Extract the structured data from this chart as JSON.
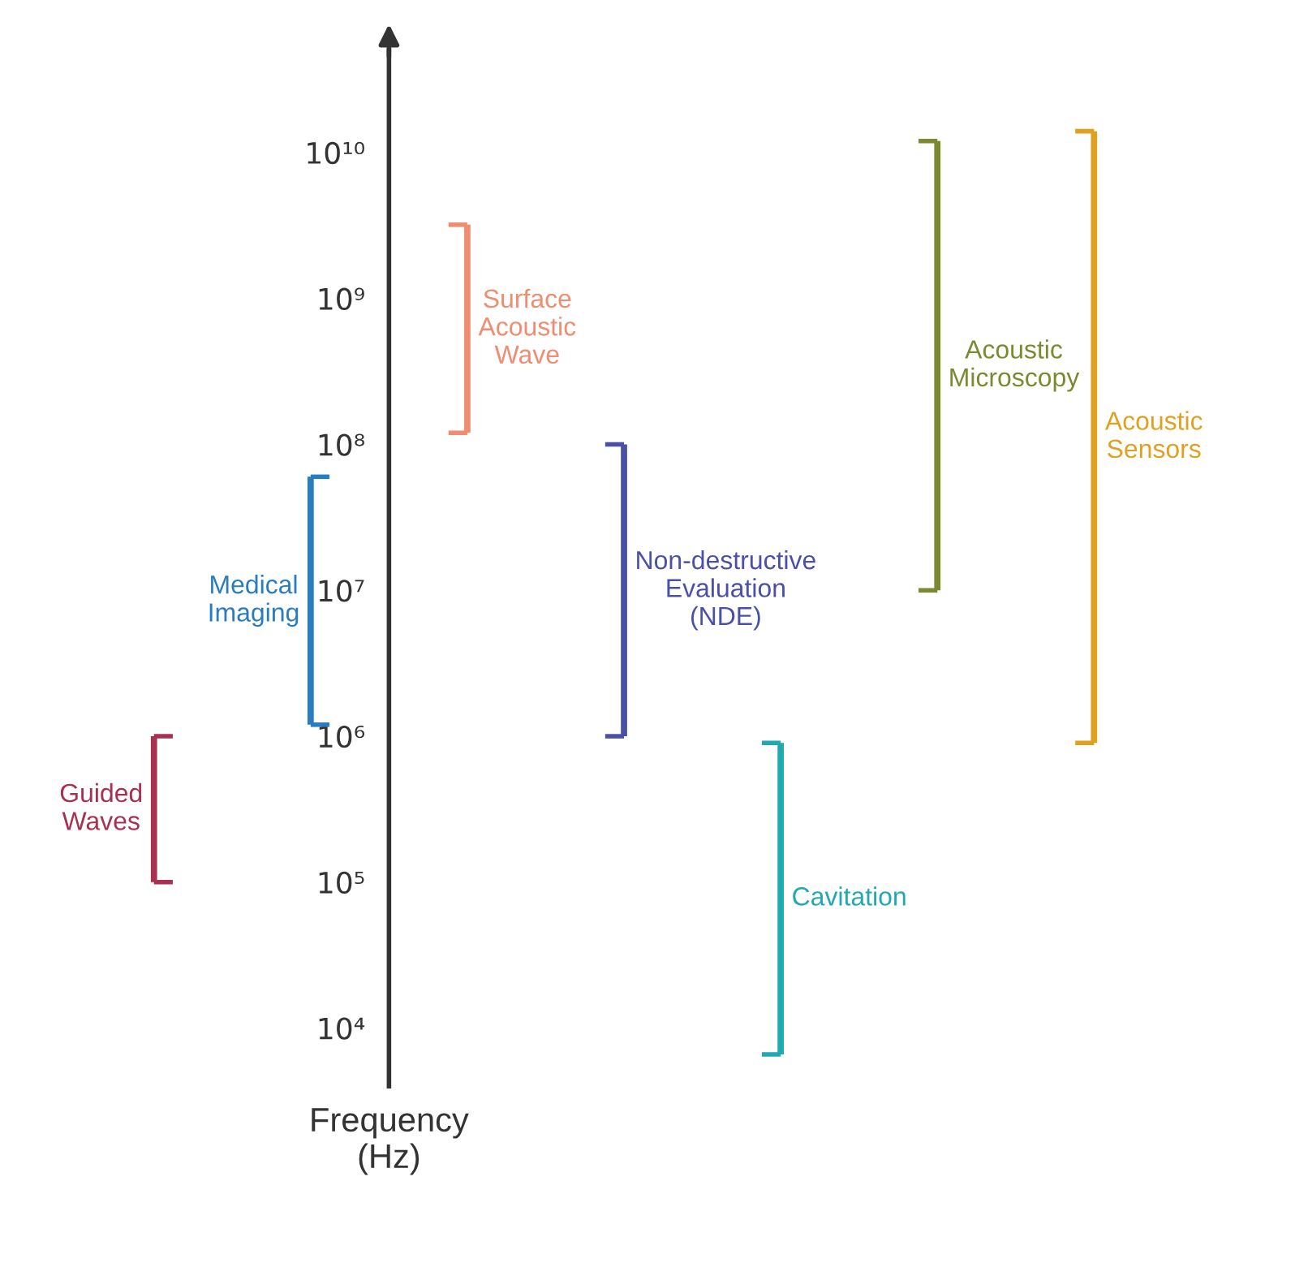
{
  "chart_data": {
    "type": "bar",
    "xlabel": "Frequency\n(Hz)",
    "categories": [
      null,
      null,
      null,
      null,
      null,
      null,
      null
    ],
    "base": [
      100000,
      1200000,
      120000000,
      1000000,
      6600,
      10000000,
      900000
    ],
    "values": [
      900000,
      58800000,
      3080000000,
      99000000,
      893400,
      11990000000,
      13999100000
    ],
    "colors": [
      "#a83050",
      "#2a7cc0",
      "#f08c70",
      "#4a50a8",
      "#22a8b0",
      "#7a8a30",
      "#e0a020"
    ],
    "annotations": [
      "Guided\nWaves",
      "Medical\nImaging",
      "Surface\nAcoustic\nWave",
      "Non-destructive\nEvaluation\n(NDE)",
      "Cavitation",
      "Acoustic\nMicroscopy",
      "Acoustic\nSensors"
    ],
    "log": true,
    "ylim": [
      4000,
      50000000000
    ],
    "yticks": [
      {
        "value": 10000,
        "label": "10⁴"
      },
      {
        "value": 100000,
        "label": "10⁵"
      },
      {
        "value": 1000000,
        "label": "10⁶"
      },
      {
        "value": 10000000,
        "label": "10⁷"
      },
      {
        "value": 100000000,
        "label": "10⁸"
      },
      {
        "value": 1000000000,
        "label": "10⁹"
      },
      {
        "value": 10000000000,
        "label": "10¹⁰"
      }
    ],
    "tick_labels": "y",
    "grid": false,
    "legend": false
  }
}
